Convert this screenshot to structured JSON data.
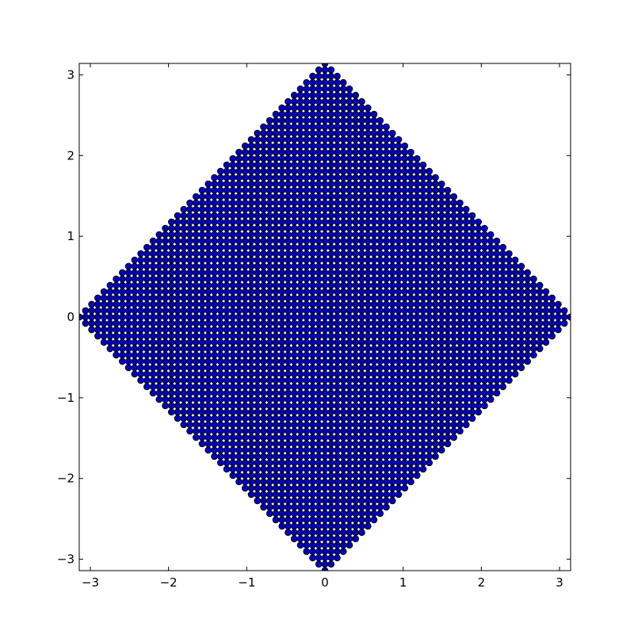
{
  "figure": {
    "background": "#ffffff"
  },
  "chart_data": {
    "type": "scatter",
    "title": "",
    "xlabel": "",
    "ylabel": "",
    "xlim": [
      -3.14159,
      3.14159
    ],
    "ylim": [
      -3.14159,
      3.14159
    ],
    "grid": false,
    "legend": "none",
    "marker": "circle",
    "marker_face_color": "#0000bf",
    "marker_edge_color": "#000000",
    "x_ticks": [
      -3,
      -2,
      -1,
      0,
      1,
      2,
      3
    ],
    "y_ticks": [
      -3,
      -2,
      -1,
      0,
      1,
      2,
      3
    ],
    "x_tick_labels": [
      "−3",
      "−2",
      "−1",
      "0",
      "1",
      "2",
      "3"
    ],
    "y_tick_labels": [
      "−3",
      "−2",
      "−1",
      "0",
      "1",
      "2",
      "3"
    ],
    "points": {
      "grid_spacing": 0.0785,
      "region": "|x| + |y| <= pi, clipped to the axes range, with flat caps at |y| = 3.1 (|x| <= 0.4) and |x| = 3.1 (|y| <= 0.4)",
      "description": "dense lattice of points filling a diamond-shaped region"
    }
  }
}
